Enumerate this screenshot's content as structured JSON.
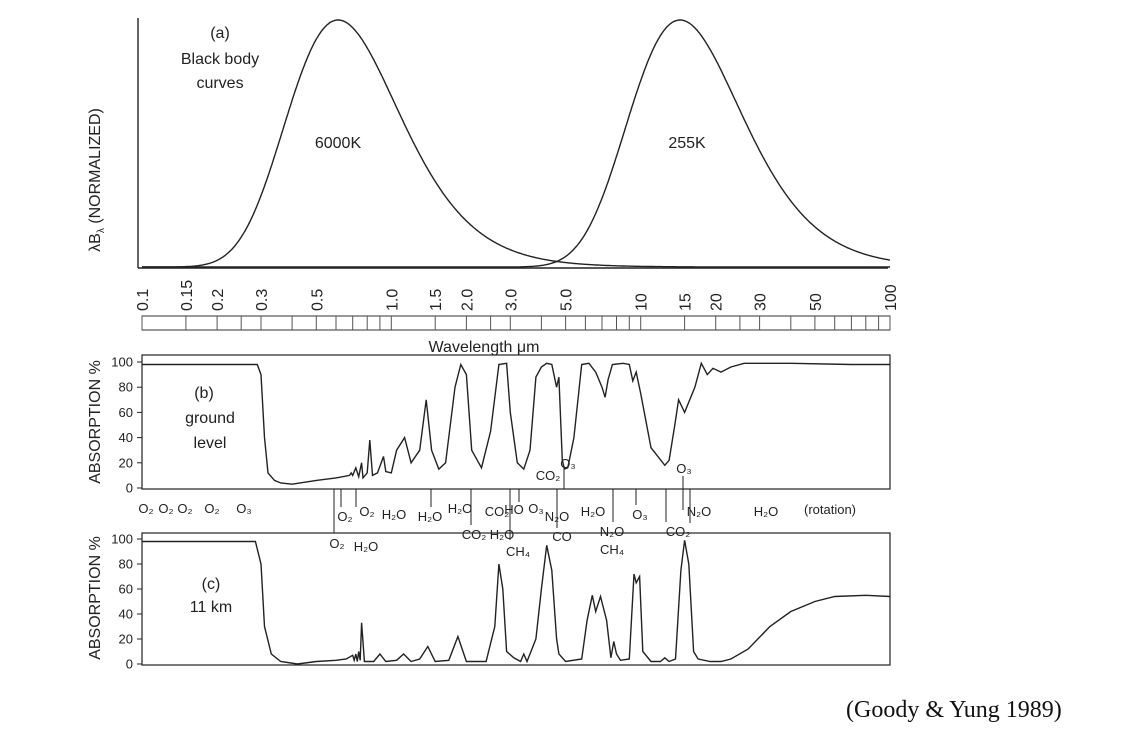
{
  "chart_data": [
    {
      "type": "line",
      "panel_label": "(a)",
      "annotation": [
        "Black body",
        "curves"
      ],
      "ylabel": "λB_λ (NORMALIZED)",
      "xlabel": "Wavelength μm",
      "x_scale": "log",
      "xlim": [
        0.1,
        100
      ],
      "x_ticks": [
        0.1,
        0.15,
        0.2,
        0.3,
        0.5,
        1.0,
        1.5,
        2.0,
        3.0,
        5.0,
        10,
        15,
        20,
        30,
        50,
        100
      ],
      "x_tick_labels": [
        "0.1",
        "0.15",
        "0.2",
        "0.3",
        "0.5",
        "1.0",
        "1.5",
        "2.0",
        "3.0",
        "5.0",
        "10",
        "15",
        "20",
        "30",
        "50",
        "100"
      ],
      "series": [
        {
          "name": "6000K",
          "temperature_K": 6000
        },
        {
          "name": "255K",
          "temperature_K": 255
        }
      ]
    },
    {
      "type": "line",
      "panel_label": [
        "(b)",
        "ground",
        "level"
      ],
      "ylabel": "ABSORPTION %",
      "ylim": [
        0,
        100
      ],
      "y_ticks": [
        0,
        20,
        40,
        60,
        80,
        100
      ],
      "x_scale": "log",
      "xlim": [
        0.1,
        100
      ],
      "points": [
        [
          0.1,
          98
        ],
        [
          0.2,
          98
        ],
        [
          0.29,
          98
        ],
        [
          0.3,
          90
        ],
        [
          0.31,
          40
        ],
        [
          0.32,
          12
        ],
        [
          0.34,
          6
        ],
        [
          0.36,
          4
        ],
        [
          0.4,
          3
        ],
        [
          0.5,
          6
        ],
        [
          0.6,
          8
        ],
        [
          0.68,
          10
        ],
        [
          0.69,
          12
        ],
        [
          0.7,
          10
        ],
        [
          0.72,
          16
        ],
        [
          0.74,
          9
        ],
        [
          0.76,
          20
        ],
        [
          0.77,
          8
        ],
        [
          0.8,
          12
        ],
        [
          0.82,
          38
        ],
        [
          0.84,
          10
        ],
        [
          0.88,
          12
        ],
        [
          0.93,
          25
        ],
        [
          0.95,
          13
        ],
        [
          1.0,
          12
        ],
        [
          1.05,
          30
        ],
        [
          1.13,
          40
        ],
        [
          1.2,
          20
        ],
        [
          1.3,
          30
        ],
        [
          1.38,
          70
        ],
        [
          1.45,
          30
        ],
        [
          1.55,
          15
        ],
        [
          1.65,
          20
        ],
        [
          1.8,
          80
        ],
        [
          1.9,
          98
        ],
        [
          2.0,
          90
        ],
        [
          2.1,
          30
        ],
        [
          2.3,
          16
        ],
        [
          2.5,
          45
        ],
        [
          2.7,
          98
        ],
        [
          2.9,
          99
        ],
        [
          3.0,
          60
        ],
        [
          3.2,
          20
        ],
        [
          3.4,
          15
        ],
        [
          3.6,
          30
        ],
        [
          3.8,
          88
        ],
        [
          4.0,
          96
        ],
        [
          4.2,
          99
        ],
        [
          4.4,
          98
        ],
        [
          4.6,
          80
        ],
        [
          4.7,
          88
        ],
        [
          4.85,
          22
        ],
        [
          4.95,
          15
        ],
        [
          5.1,
          16
        ],
        [
          5.4,
          40
        ],
        [
          5.8,
          98
        ],
        [
          6.2,
          99
        ],
        [
          6.6,
          92
        ],
        [
          7.0,
          80
        ],
        [
          7.2,
          72
        ],
        [
          7.4,
          86
        ],
        [
          7.7,
          98
        ],
        [
          8.5,
          99
        ],
        [
          9.0,
          98
        ],
        [
          9.3,
          85
        ],
        [
          9.6,
          92
        ],
        [
          10.0,
          75
        ],
        [
          11.0,
          32
        ],
        [
          12.5,
          18
        ],
        [
          13.0,
          22
        ],
        [
          13.7,
          50
        ],
        [
          14.2,
          70
        ],
        [
          15.0,
          60
        ],
        [
          16.5,
          80
        ],
        [
          17.5,
          99
        ],
        [
          18.5,
          90
        ],
        [
          19.5,
          95
        ],
        [
          21,
          92
        ],
        [
          23,
          96
        ],
        [
          26,
          99
        ],
        [
          40,
          99
        ],
        [
          70,
          98
        ],
        [
          100,
          98
        ]
      ]
    },
    {
      "type": "line",
      "panel_label": [
        "(c)",
        "11 km"
      ],
      "ylabel": "ABSORPTION %",
      "ylim": [
        0,
        100
      ],
      "y_ticks": [
        0,
        20,
        40,
        60,
        80,
        100
      ],
      "x_scale": "log",
      "xlim": [
        0.1,
        100
      ],
      "points": [
        [
          0.1,
          98
        ],
        [
          0.2,
          98
        ],
        [
          0.285,
          98
        ],
        [
          0.3,
          80
        ],
        [
          0.31,
          30
        ],
        [
          0.33,
          8
        ],
        [
          0.36,
          2
        ],
        [
          0.42,
          0
        ],
        [
          0.5,
          2
        ],
        [
          0.6,
          3
        ],
        [
          0.66,
          4
        ],
        [
          0.7,
          7
        ],
        [
          0.71,
          3
        ],
        [
          0.72,
          8
        ],
        [
          0.73,
          2
        ],
        [
          0.74,
          10
        ],
        [
          0.75,
          3
        ],
        [
          0.76,
          33
        ],
        [
          0.78,
          2
        ],
        [
          0.85,
          2
        ],
        [
          0.9,
          8
        ],
        [
          0.95,
          2
        ],
        [
          1.05,
          3
        ],
        [
          1.12,
          8
        ],
        [
          1.2,
          2
        ],
        [
          1.3,
          4
        ],
        [
          1.4,
          14
        ],
        [
          1.5,
          2
        ],
        [
          1.7,
          3
        ],
        [
          1.85,
          22
        ],
        [
          2.0,
          2
        ],
        [
          2.4,
          2
        ],
        [
          2.6,
          30
        ],
        [
          2.7,
          80
        ],
        [
          2.8,
          60
        ],
        [
          2.9,
          10
        ],
        [
          3.1,
          5
        ],
        [
          3.3,
          2
        ],
        [
          3.4,
          8
        ],
        [
          3.5,
          2
        ],
        [
          3.8,
          20
        ],
        [
          4.0,
          60
        ],
        [
          4.2,
          95
        ],
        [
          4.4,
          75
        ],
        [
          4.6,
          20
        ],
        [
          4.7,
          8
        ],
        [
          5.0,
          2
        ],
        [
          5.8,
          4
        ],
        [
          6.1,
          35
        ],
        [
          6.4,
          55
        ],
        [
          6.6,
          42
        ],
        [
          6.9,
          54
        ],
        [
          7.3,
          35
        ],
        [
          7.6,
          5
        ],
        [
          7.8,
          18
        ],
        [
          8.0,
          8
        ],
        [
          8.3,
          3
        ],
        [
          9.0,
          4
        ],
        [
          9.4,
          72
        ],
        [
          9.6,
          65
        ],
        [
          9.9,
          70
        ],
        [
          10.2,
          10
        ],
        [
          11.0,
          2
        ],
        [
          12.0,
          2
        ],
        [
          12.5,
          5
        ],
        [
          13.0,
          2
        ],
        [
          13.8,
          4
        ],
        [
          14.5,
          75
        ],
        [
          15.0,
          99
        ],
        [
          15.6,
          80
        ],
        [
          16.3,
          10
        ],
        [
          17,
          4
        ],
        [
          19,
          2
        ],
        [
          21,
          2
        ],
        [
          23,
          4
        ],
        [
          27,
          12
        ],
        [
          33,
          30
        ],
        [
          40,
          42
        ],
        [
          50,
          50
        ],
        [
          60,
          54
        ],
        [
          80,
          55
        ],
        [
          100,
          54
        ]
      ]
    }
  ],
  "wavelength_axis_label": "Wavelength μm",
  "absorbers_top": [
    "O₂",
    "O₂",
    "O₂",
    "O₂",
    "O₃",
    "O₂",
    "O₂",
    "H₂O",
    "H₂O",
    "H₂O",
    "CO₂",
    "HO",
    "O₃",
    "N₂O",
    "H₂O",
    "O₃",
    "N₂O",
    "H₂O",
    "(rotation)"
  ],
  "absorbers_bottom": [
    "O₂",
    "H₂O",
    "CO₂",
    "H₂O",
    "CH₄",
    "CO",
    "N₂O",
    "CH₄",
    "CO₂"
  ],
  "absorbers_panel_b": [
    "CO₂",
    "O₃",
    "O₃"
  ],
  "citation": "(Goody & Yung 1989)"
}
